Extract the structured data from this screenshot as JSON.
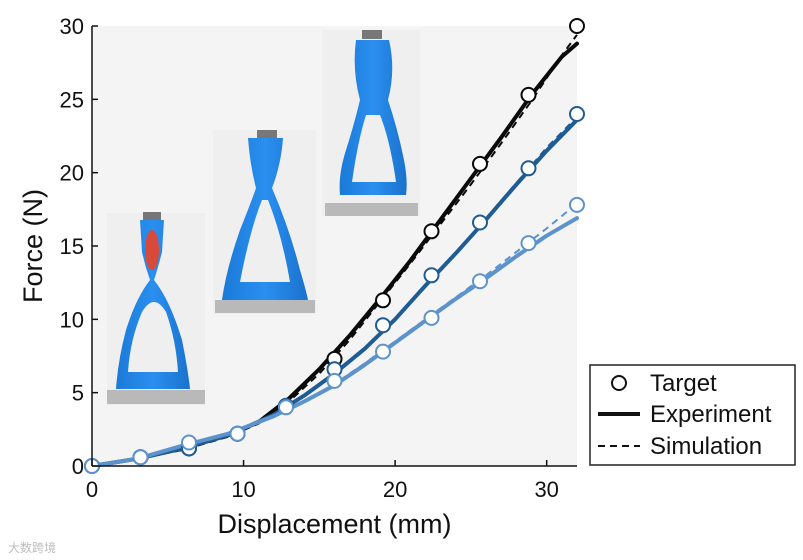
{
  "chart_data": {
    "type": "line",
    "title": "",
    "xlabel": "Displacement (mm)",
    "ylabel": "Force (N)",
    "xlim": [
      0,
      32
    ],
    "ylim": [
      0,
      30
    ],
    "x_ticks": [
      "0",
      "10",
      "20",
      "30"
    ],
    "y_ticks": [
      "0",
      "5",
      "10",
      "15",
      "20",
      "25",
      "30"
    ],
    "grid": false,
    "legend_position": "bottom-right",
    "legend": [
      {
        "label": "Target",
        "style": "open-circle"
      },
      {
        "label": "Experiment",
        "style": "solid"
      },
      {
        "label": "Simulation",
        "style": "dashed"
      }
    ],
    "series": [
      {
        "color": "#0a0a0a",
        "target": [
          [
            0,
            0
          ],
          [
            3.2,
            0.6
          ],
          [
            6.4,
            1.2
          ],
          [
            9.6,
            2.2
          ],
          [
            12.8,
            4.1
          ],
          [
            16,
            7.3
          ],
          [
            19.2,
            11.3
          ],
          [
            22.4,
            16
          ],
          [
            25.6,
            20.6
          ],
          [
            28.8,
            25.3
          ],
          [
            32,
            30
          ]
        ],
        "experiment": [
          [
            0,
            0
          ],
          [
            3,
            0.5
          ],
          [
            6,
            1.2
          ],
          [
            9,
            2.1
          ],
          [
            11,
            3
          ],
          [
            13,
            4.6
          ],
          [
            15,
            6.6
          ],
          [
            17,
            8.9
          ],
          [
            19,
            11.4
          ],
          [
            21,
            14
          ],
          [
            23,
            16.8
          ],
          [
            25,
            19.6
          ],
          [
            27,
            22.4
          ],
          [
            29,
            25.3
          ],
          [
            31,
            27.9
          ],
          [
            32,
            28.8
          ]
        ],
        "simulation": [
          [
            0,
            0
          ],
          [
            3,
            0.5
          ],
          [
            6,
            1.1
          ],
          [
            9,
            2
          ],
          [
            11,
            2.9
          ],
          [
            13,
            4.4
          ],
          [
            15,
            6.3
          ],
          [
            17,
            8.6
          ],
          [
            19,
            11.2
          ],
          [
            21,
            13.8
          ],
          [
            23,
            16.5
          ],
          [
            25,
            19.2
          ],
          [
            27,
            22
          ],
          [
            29,
            24.9
          ],
          [
            31,
            28
          ],
          [
            32,
            29.4
          ]
        ]
      },
      {
        "color": "#1f5c94",
        "target": [
          [
            0,
            0
          ],
          [
            3.2,
            0.6
          ],
          [
            6.4,
            1.2
          ],
          [
            9.6,
            2.2
          ],
          [
            12.8,
            4.1
          ],
          [
            16,
            6.6
          ],
          [
            19.2,
            9.6
          ],
          [
            22.4,
            13
          ],
          [
            25.6,
            16.6
          ],
          [
            28.8,
            20.3
          ],
          [
            32,
            24
          ]
        ],
        "experiment": [
          [
            0,
            0
          ],
          [
            3,
            0.5
          ],
          [
            6,
            1.2
          ],
          [
            9,
            2.1
          ],
          [
            12,
            3.5
          ],
          [
            14,
            4.8
          ],
          [
            16,
            6.3
          ],
          [
            18,
            8
          ],
          [
            20,
            10
          ],
          [
            22,
            12.3
          ],
          [
            24,
            14.5
          ],
          [
            26,
            16.8
          ],
          [
            28,
            19.2
          ],
          [
            30,
            21.5
          ],
          [
            32,
            23.6
          ]
        ],
        "simulation": [
          [
            0,
            0
          ],
          [
            3,
            0.5
          ],
          [
            6,
            1.2
          ],
          [
            9,
            2.1
          ],
          [
            12,
            3.5
          ],
          [
            14,
            4.8
          ],
          [
            16,
            6.2
          ],
          [
            18,
            8
          ],
          [
            20,
            10
          ],
          [
            22,
            12.2
          ],
          [
            24,
            14.5
          ],
          [
            26,
            16.9
          ],
          [
            28,
            19.3
          ],
          [
            30,
            21.7
          ],
          [
            32,
            23.8
          ]
        ]
      },
      {
        "color": "#5c93cd",
        "target": [
          [
            0,
            0
          ],
          [
            3.2,
            0.6
          ],
          [
            6.4,
            1.6
          ],
          [
            9.6,
            2.2
          ],
          [
            12.8,
            4
          ],
          [
            16,
            5.8
          ],
          [
            19.2,
            7.8
          ],
          [
            22.4,
            10.1
          ],
          [
            25.6,
            12.6
          ],
          [
            28.8,
            15.2
          ],
          [
            32,
            17.8
          ]
        ],
        "experiment": [
          [
            0,
            0
          ],
          [
            3,
            0.5
          ],
          [
            6,
            1.4
          ],
          [
            9,
            2.2
          ],
          [
            12,
            3.4
          ],
          [
            14,
            4.4
          ],
          [
            16,
            5.5
          ],
          [
            18,
            6.9
          ],
          [
            20,
            8.4
          ],
          [
            22,
            9.9
          ],
          [
            24,
            11.4
          ],
          [
            26,
            12.8
          ],
          [
            28,
            14.3
          ],
          [
            30,
            15.7
          ],
          [
            32,
            16.9
          ]
        ],
        "simulation": [
          [
            0,
            0
          ],
          [
            3,
            0.5
          ],
          [
            6,
            1.4
          ],
          [
            9,
            2.2
          ],
          [
            12,
            3.4
          ],
          [
            14,
            4.4
          ],
          [
            16,
            5.6
          ],
          [
            18,
            7
          ],
          [
            20,
            8.5
          ],
          [
            22,
            10
          ],
          [
            24,
            11.5
          ],
          [
            26,
            13
          ],
          [
            28,
            14.6
          ],
          [
            30,
            16.2
          ],
          [
            32,
            17.9
          ]
        ]
      }
    ]
  },
  "watermark": "大数跨境"
}
